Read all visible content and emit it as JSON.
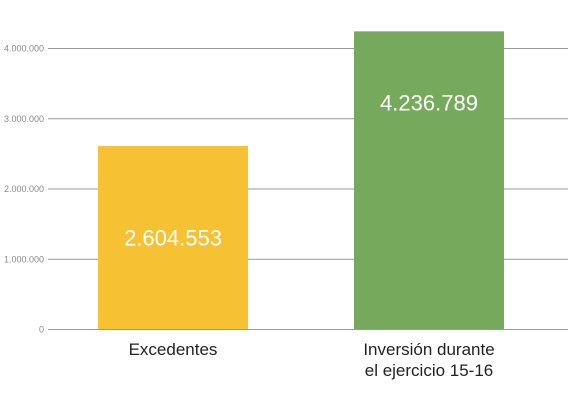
{
  "chart_data": {
    "type": "bar",
    "title": "",
    "xlabel": "",
    "ylabel": "",
    "categories": [
      [
        "Excedentes"
      ],
      [
        "Inversión durante",
        "el ejercicio 15-16"
      ]
    ],
    "values": [
      2604553,
      4236789
    ],
    "value_labels": [
      "2.604.553",
      "4.236.789"
    ],
    "colors": [
      "#F6C233",
      "#77A95C"
    ],
    "ylim": [
      0,
      4300000
    ],
    "yticks": [
      0,
      1000000,
      2000000,
      3000000,
      4000000
    ],
    "ytick_labels": [
      "0",
      "1.000.000",
      "2.000.000",
      "3.000.000",
      "4.000.000"
    ],
    "grid": true,
    "legend": "none"
  }
}
